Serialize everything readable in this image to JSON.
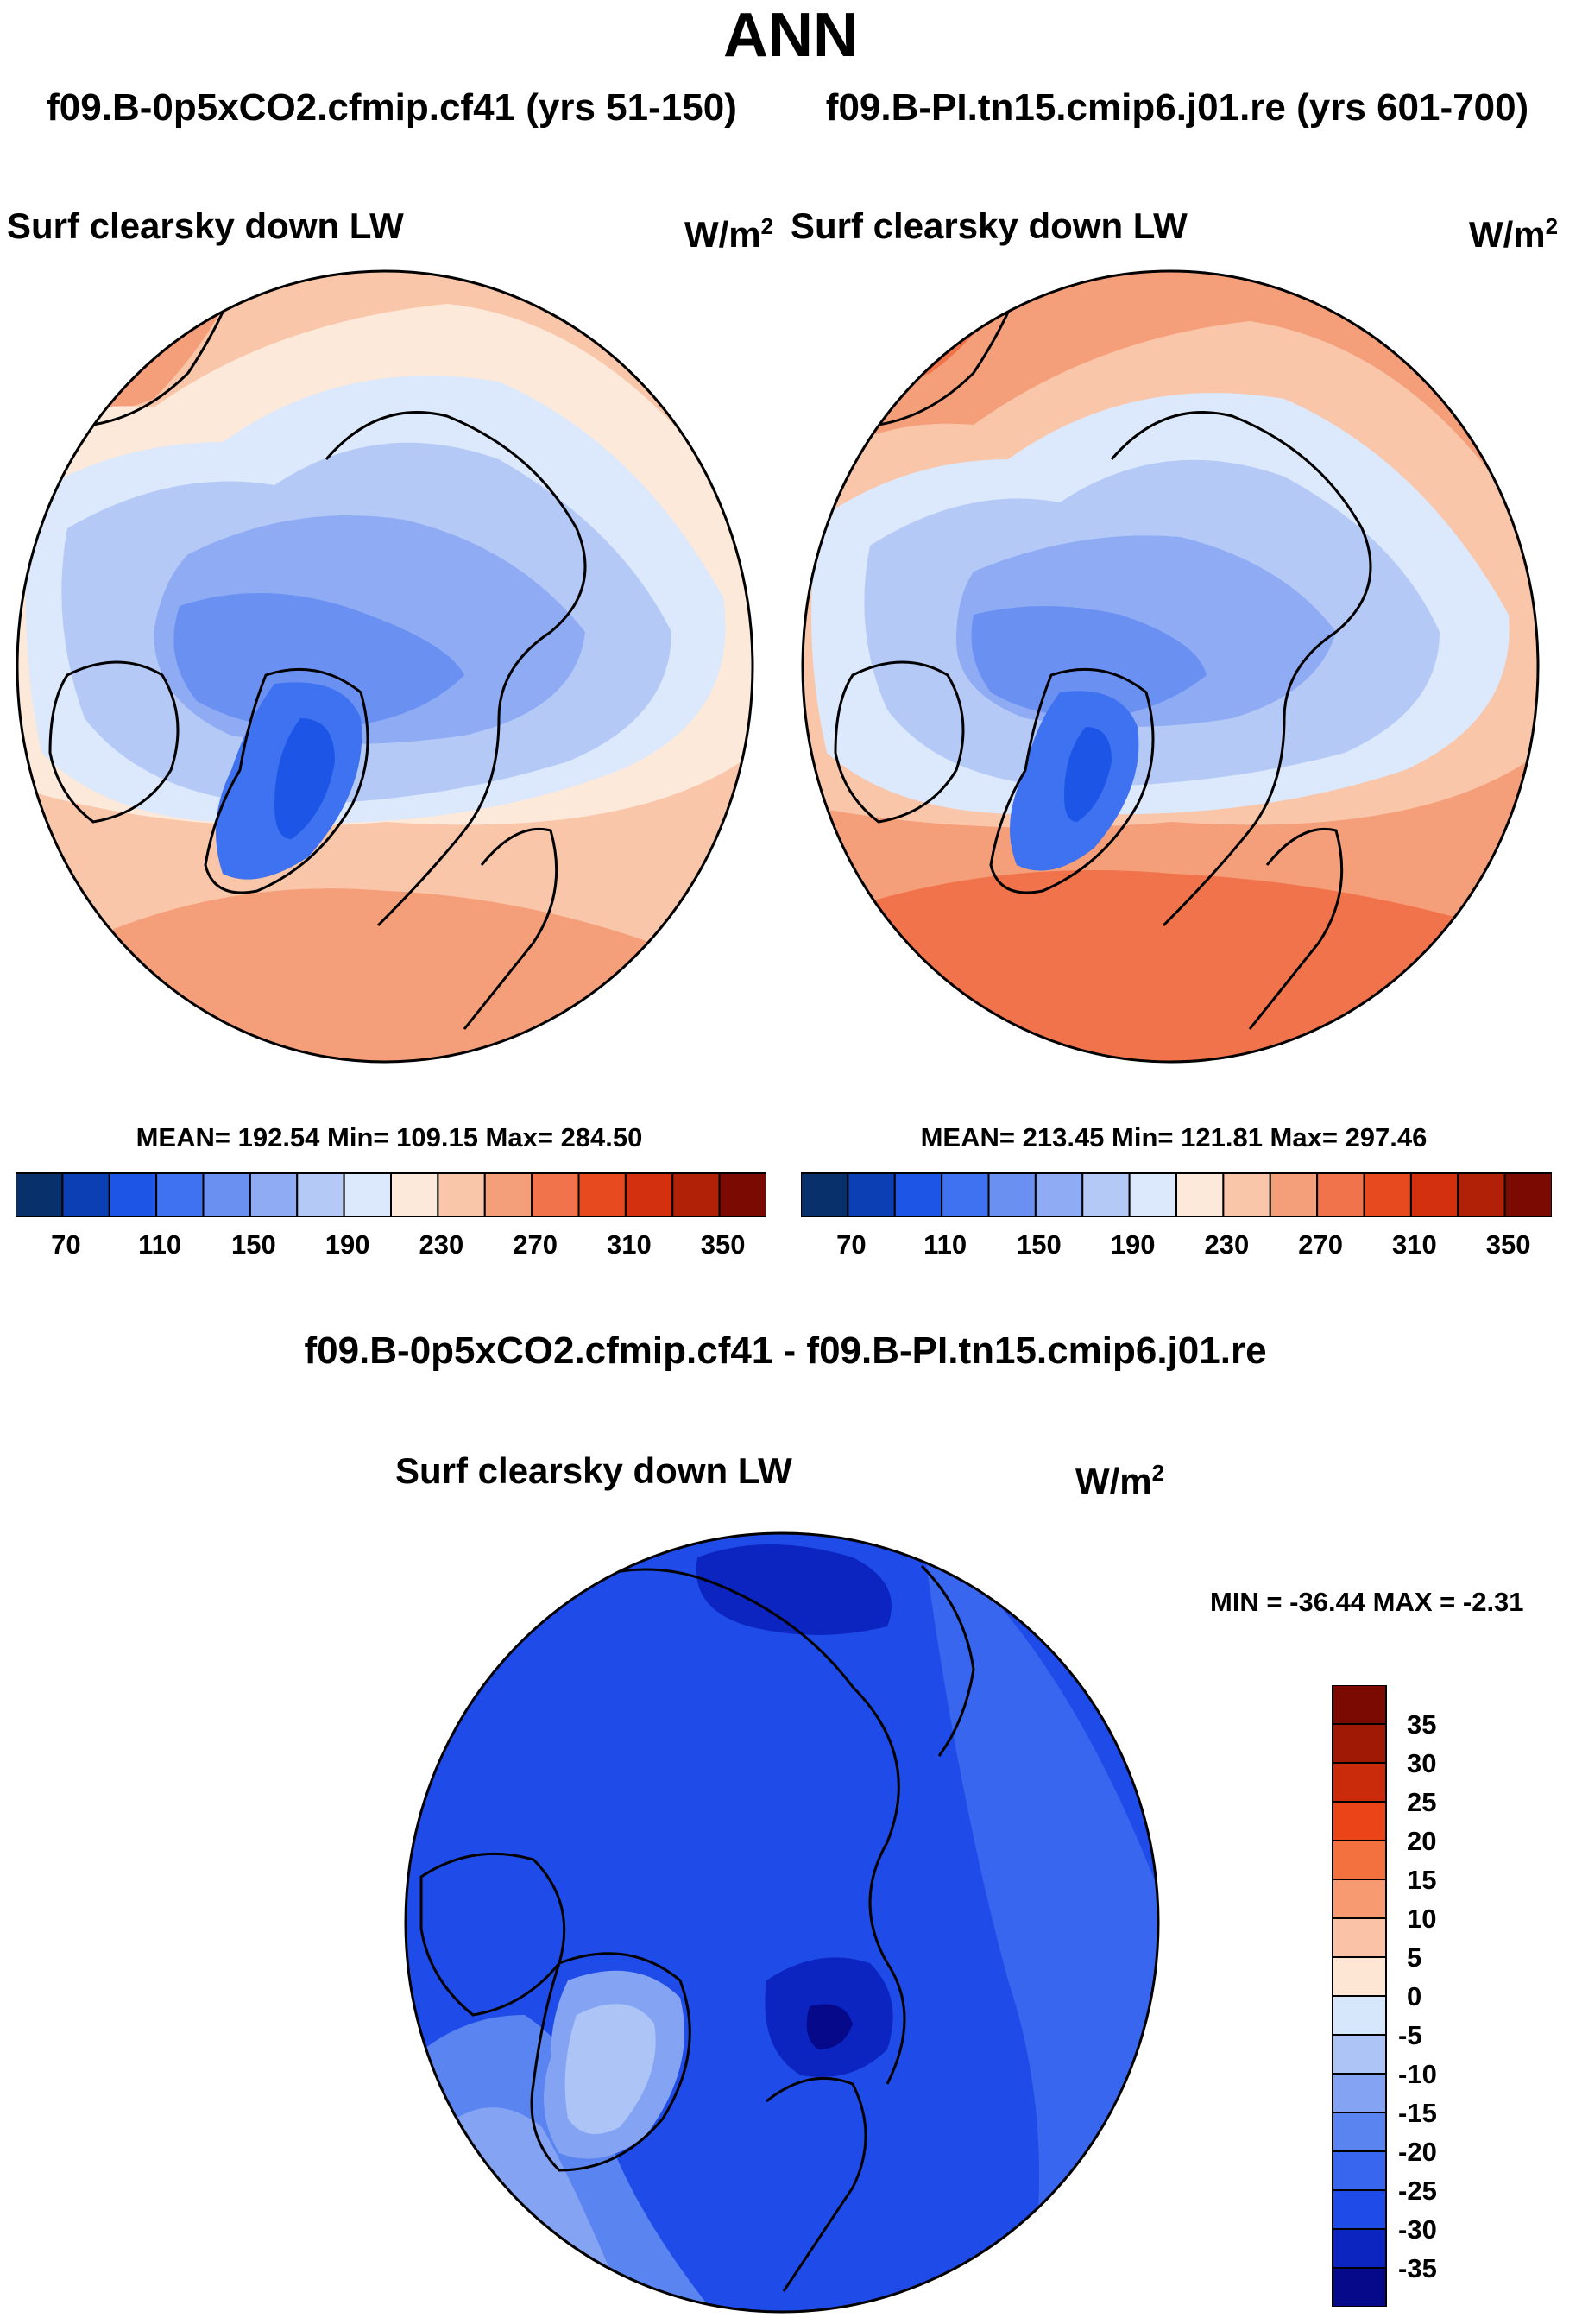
{
  "title": "ANN",
  "panels": [
    {
      "case_title": "f09.B-0p5xCO2.cfmip.cf41 (yrs 51-150)",
      "variable": "Surf clearsky down LW",
      "units": "W/m",
      "units_exp": "2",
      "stats": "MEAN= 192.54  Min= 109.15  Max= 284.50",
      "mean": 192.54,
      "min": 109.15,
      "max": 284.5
    },
    {
      "case_title": "f09.B-PI.tn15.cmip6.j01.re (yrs 601-700)",
      "variable": "Surf clearsky down LW",
      "units": "W/m",
      "units_exp": "2",
      "stats": "MEAN= 213.45  Min= 121.81  Max= 297.46",
      "mean": 213.45,
      "min": 121.81,
      "max": 297.46
    }
  ],
  "diff_panel": {
    "title": "f09.B-0p5xCO2.cfmip.cf41 - f09.B-PI.tn15.cmip6.j01.re",
    "variable": "Surf clearsky down LW",
    "units": "W/m",
    "units_exp": "2",
    "stats": "MIN = -36.44 MAX =  -2.31",
    "min": -36.44,
    "max": -2.31
  },
  "colorbar_abs": {
    "colors": [
      "#08306b",
      "#0d3fb4",
      "#1d56e6",
      "#3f72f0",
      "#6a91f2",
      "#8eabf4",
      "#b5c9f7",
      "#dce8fb",
      "#fde9d9",
      "#f9c6aa",
      "#f59f7a",
      "#f0734b",
      "#e84a1f",
      "#d2300f",
      "#b12107",
      "#7a0a02"
    ],
    "tick_labels": [
      "70",
      "110",
      "150",
      "190",
      "230",
      "270",
      "310",
      "350"
    ]
  },
  "colorbar_diff": {
    "colors": [
      "#060a8a",
      "#0c24c0",
      "#1f4ce8",
      "#3866ee",
      "#5a84f0",
      "#84a3f3",
      "#adc4f6",
      "#d7e7fb",
      "#fde6d4",
      "#fac2a6",
      "#f79a72",
      "#f3703f",
      "#ea4418",
      "#c92b0b",
      "#a01905",
      "#7a0a02"
    ],
    "tick_labels": [
      "35",
      "30",
      "25",
      "20",
      "15",
      "10",
      "5",
      "0",
      "-5",
      "-10",
      "-15",
      "-20",
      "-25",
      "-30",
      "-35"
    ]
  },
  "map_regions": {
    "abs1": [
      {
        "level": 8,
        "note": "warm rim"
      },
      {
        "level": 7,
        "note": "cool ring"
      },
      {
        "level": 6,
        "note": "arctic"
      },
      {
        "level": 5,
        "note": "central arctic"
      },
      {
        "level": 4,
        "note": "archipelago"
      },
      {
        "level": 3,
        "note": "greenland"
      }
    ],
    "abs2": [
      {
        "level": 9,
        "note": "warm rim"
      },
      {
        "level": 7,
        "note": "cool ring"
      },
      {
        "level": 6,
        "note": "arctic"
      },
      {
        "level": 5,
        "note": "central arctic"
      },
      {
        "level": 4,
        "note": "archipelago"
      },
      {
        "level": 3,
        "note": "greenland"
      }
    ],
    "diff": [
      {
        "level": 3,
        "note": "bulk"
      },
      {
        "level": 5,
        "note": "greenland"
      },
      {
        "level": 6,
        "note": "north atlantic"
      },
      {
        "level": 2,
        "note": "barents"
      },
      {
        "level": 1,
        "note": "barents core"
      }
    ]
  }
}
